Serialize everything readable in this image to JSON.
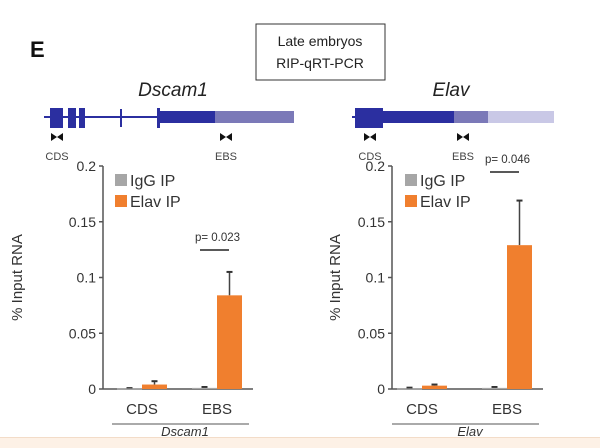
{
  "panel_label": "E",
  "condition_box": {
    "line1": "Late embryos",
    "line2": "RIP-qRT-PCR"
  },
  "gene_models": [
    {
      "name": "Dscam1",
      "primer_labels": [
        "CDS",
        "EBS"
      ]
    },
    {
      "name": "Elav",
      "primer_labels": [
        "CDS",
        "EBS"
      ]
    }
  ],
  "colors": {
    "igg": "#a6a6a6",
    "elav": "#f07f2e",
    "exon": "#2b2fa0",
    "utr_mid": "#7b79b8",
    "utr_light": "#c9c8e6"
  },
  "chart_data": [
    {
      "type": "bar",
      "ylabel": "% Input RNA",
      "xlabel": "Dscam1",
      "categories": [
        "CDS",
        "EBS"
      ],
      "ylim": [
        0,
        0.2
      ],
      "yticks": [
        "0",
        "0.05",
        "0.1",
        "0.15",
        "0.2"
      ],
      "legend": {
        "position": "top-left",
        "entries": [
          "IgG IP",
          "Elav IP"
        ]
      },
      "series": [
        {
          "name": "IgG IP",
          "values": [
            0.0005,
            0.001
          ],
          "error_top": [
            0.0008,
            0.0018
          ]
        },
        {
          "name": "Elav IP",
          "values": [
            0.004,
            0.084
          ],
          "error_top": [
            0.007,
            0.105
          ]
        }
      ],
      "annotation": {
        "category": "EBS",
        "text": "p= 0.023"
      }
    },
    {
      "type": "bar",
      "ylabel": "% Input RNA",
      "xlabel": "Elav",
      "categories": [
        "CDS",
        "EBS"
      ],
      "ylim": [
        0,
        0.2
      ],
      "yticks": [
        "0",
        "0.05",
        "0.1",
        "0.15",
        "0.2"
      ],
      "legend": {
        "position": "top-left",
        "entries": [
          "IgG IP",
          "Elav IP"
        ]
      },
      "series": [
        {
          "name": "IgG IP",
          "values": [
            0.0005,
            0.001
          ],
          "error_top": [
            0.0012,
            0.0018
          ]
        },
        {
          "name": "Elav IP",
          "values": [
            0.003,
            0.129
          ],
          "error_top": [
            0.004,
            0.169
          ]
        }
      ],
      "annotation": {
        "category": "EBS",
        "text": "p= 0.046"
      }
    }
  ]
}
